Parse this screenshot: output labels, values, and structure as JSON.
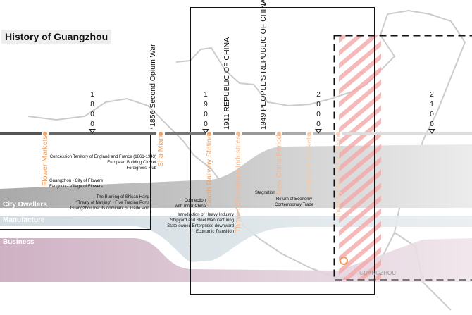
{
  "title": "History of Guangzhou",
  "years": [
    {
      "label": "1800",
      "digits": [
        "1",
        "8",
        "0",
        "0"
      ]
    },
    {
      "label": "1900",
      "digits": [
        "1",
        "9",
        "0",
        "0"
      ]
    },
    {
      "label": "2000",
      "digits": [
        "2",
        "0",
        "0",
        "0"
      ]
    },
    {
      "label": "2100",
      "digits": [
        "2",
        "1",
        "0",
        "0"
      ]
    }
  ],
  "periods": [
    "*1856 Second Opium War",
    "1911 REPUBLIC OF CHINA",
    "1949 PEOPLE'S REPUBLIC OF CHINA"
  ],
  "milestones": [
    "Flower Markets",
    "Sha Mian",
    "South Railway Station",
    "Thrive of Riverfront Industries",
    "New China Period",
    "Wholesale Markets",
    "Industry Decentralization"
  ],
  "events": {
    "concession": [
      "Concession Territory of England and France (1861-1943)",
      "European Building Cluster",
      "Foreigners' Hub"
    ],
    "flowers": [
      "Guangzhou - City of Flowers",
      "Fangcun - Village of Flowers"
    ],
    "shisan": [
      "The Burning of Shisan Hang",
      "\"Treaty of Nanjing\" - Five Trading Ports",
      "Guangzhou lost its dominant of Trade Port"
    ],
    "connection": [
      "Connection",
      "with Inner China"
    ],
    "industry": [
      "Introduction of Heavy Industry",
      "Shipyard and Steel Manufacturing",
      "State-owned Enterprises downward",
      "Economic Transition"
    ],
    "stagnation": "Stagnation",
    "economy": [
      "Return of Economy",
      "Contemporary Trade"
    ]
  },
  "categories": [
    "City Dwellers",
    "Manufacture",
    "Business"
  ],
  "map_label": "GUANGZHOU",
  "colors": {
    "accent": "#f0a060",
    "hatch": "#f4a0a0"
  }
}
